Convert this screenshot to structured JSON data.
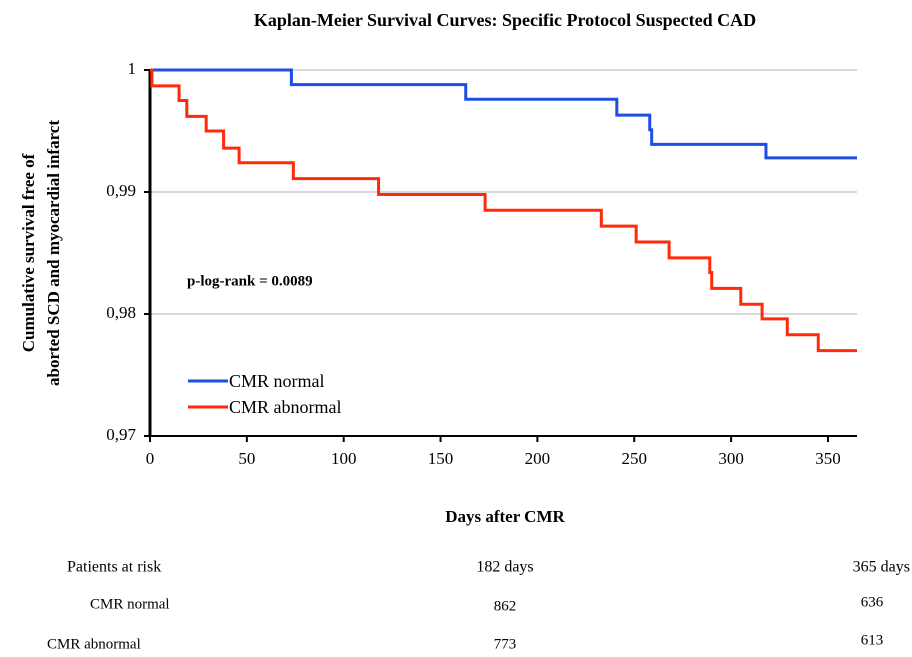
{
  "chart_data": {
    "type": "step",
    "title": "Kaplan-Meier Survival Curves: Specific Protocol Suspected CAD",
    "ylabel": [
      "Cumulative survival free of",
      "aborted SCD and myocardial infarct"
    ],
    "xlabel": "Days after CMR",
    "annotation": "p-log-rank = 0.0089",
    "xlim": [
      0,
      365
    ],
    "xticks": [
      0,
      50,
      100,
      150,
      200,
      250,
      300,
      350
    ],
    "ylim": [
      0.97,
      1
    ],
    "yticks": [
      {
        "value": 0.97,
        "label": "0,97"
      },
      {
        "value": 0.98,
        "label": "0,98"
      },
      {
        "value": 0.99,
        "label": "0,99"
      },
      1
    ],
    "grid": true,
    "series": [
      {
        "name": "CMR normal",
        "color": "#1f4fe0",
        "x": [
          0,
          73,
          163,
          241,
          258,
          259,
          318,
          365
        ],
        "values": [
          1,
          0.9988,
          0.9976,
          0.9963,
          0.9951,
          0.9939,
          0.9928,
          0.9928
        ]
      },
      {
        "name": "CMR abnormal",
        "color": "#ff2a0a",
        "x": [
          0,
          1,
          15,
          19,
          29,
          38,
          46,
          74,
          118,
          173,
          233,
          251,
          268,
          289,
          290,
          305,
          316,
          329,
          345,
          365
        ],
        "values": [
          1,
          0.9987,
          0.9975,
          0.9962,
          0.995,
          0.9936,
          0.9924,
          0.9911,
          0.9898,
          0.9885,
          0.9872,
          0.9859,
          0.9846,
          0.9834,
          0.9821,
          0.9808,
          0.9796,
          0.9783,
          0.977,
          0.977
        ]
      }
    ]
  },
  "risk_table": {
    "header": [
      "Patients at risk",
      "182 days",
      "365 days"
    ],
    "rows": [
      {
        "label": "CMR normal",
        "values": [
          862,
          636
        ]
      },
      {
        "label": "CMR abnormal",
        "values": [
          773,
          613
        ]
      }
    ]
  }
}
